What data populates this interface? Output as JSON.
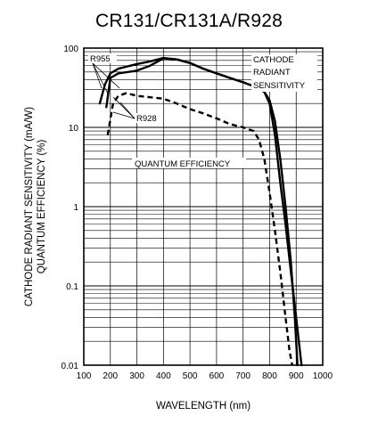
{
  "chart_data": {
    "type": "line",
    "title": "CR131/CR131A/R928",
    "xlabel": "WAVELENGTH (nm)",
    "ylabel_line1": "CATHODE RADIANT SENSITIVITY (mA/W)",
    "ylabel_line2": "QUANTUM EFFICIENCY (%)",
    "xlim": [
      100,
      1000
    ],
    "ylim": [
      0.01,
      100
    ],
    "yscale": "log",
    "grid": true,
    "x_ticks": [
      "100",
      "200",
      "300",
      "400",
      "500",
      "600",
      "700",
      "800",
      "900",
      "1000"
    ],
    "y_ticks": [
      "0.01",
      "0.1",
      "1",
      "10",
      "100"
    ],
    "annotations": {
      "r955": "R955",
      "r928": "R928",
      "cathode_1": "CATHODE",
      "cathode_2": "RADIANT",
      "cathode_3": "SENSITIVITY",
      "qe": "QUANTUM EFFICIENCY"
    },
    "series": [
      {
        "name": "R955",
        "style": "solid",
        "x": [
          160,
          180,
          200,
          230,
          300,
          350,
          400,
          450,
          500,
          550,
          600,
          650,
          700,
          750,
          780,
          800,
          820,
          840,
          860,
          880,
          900,
          920
        ],
        "y": [
          20,
          35,
          48,
          55,
          63,
          68,
          75,
          72,
          65,
          55,
          48,
          42,
          37,
          32,
          28,
          20,
          8,
          2,
          0.6,
          0.15,
          0.04,
          0.01
        ]
      },
      {
        "name": "R928",
        "style": "solid",
        "x": [
          185,
          200,
          230,
          300,
          350,
          400,
          450,
          500,
          550,
          600,
          650,
          700,
          750,
          780,
          800,
          820,
          840,
          860,
          880,
          895,
          905
        ],
        "y": [
          18,
          42,
          48,
          52,
          60,
          74,
          72,
          65,
          55,
          48,
          42,
          37,
          32,
          28,
          22,
          12,
          4,
          1,
          0.2,
          0.04,
          0.01
        ]
      },
      {
        "name": "QUANTUM EFFICIENCY",
        "style": "dashed",
        "x": [
          190,
          210,
          230,
          260,
          300,
          350,
          400,
          450,
          500,
          550,
          600,
          650,
          700,
          740,
          760,
          780,
          800,
          820,
          840,
          860,
          875,
          885
        ],
        "y": [
          8,
          20,
          25,
          27,
          25,
          24,
          23,
          20,
          17,
          15,
          13,
          11,
          10,
          9,
          7,
          4,
          1.5,
          0.5,
          0.15,
          0.04,
          0.015,
          0.01
        ]
      }
    ]
  }
}
